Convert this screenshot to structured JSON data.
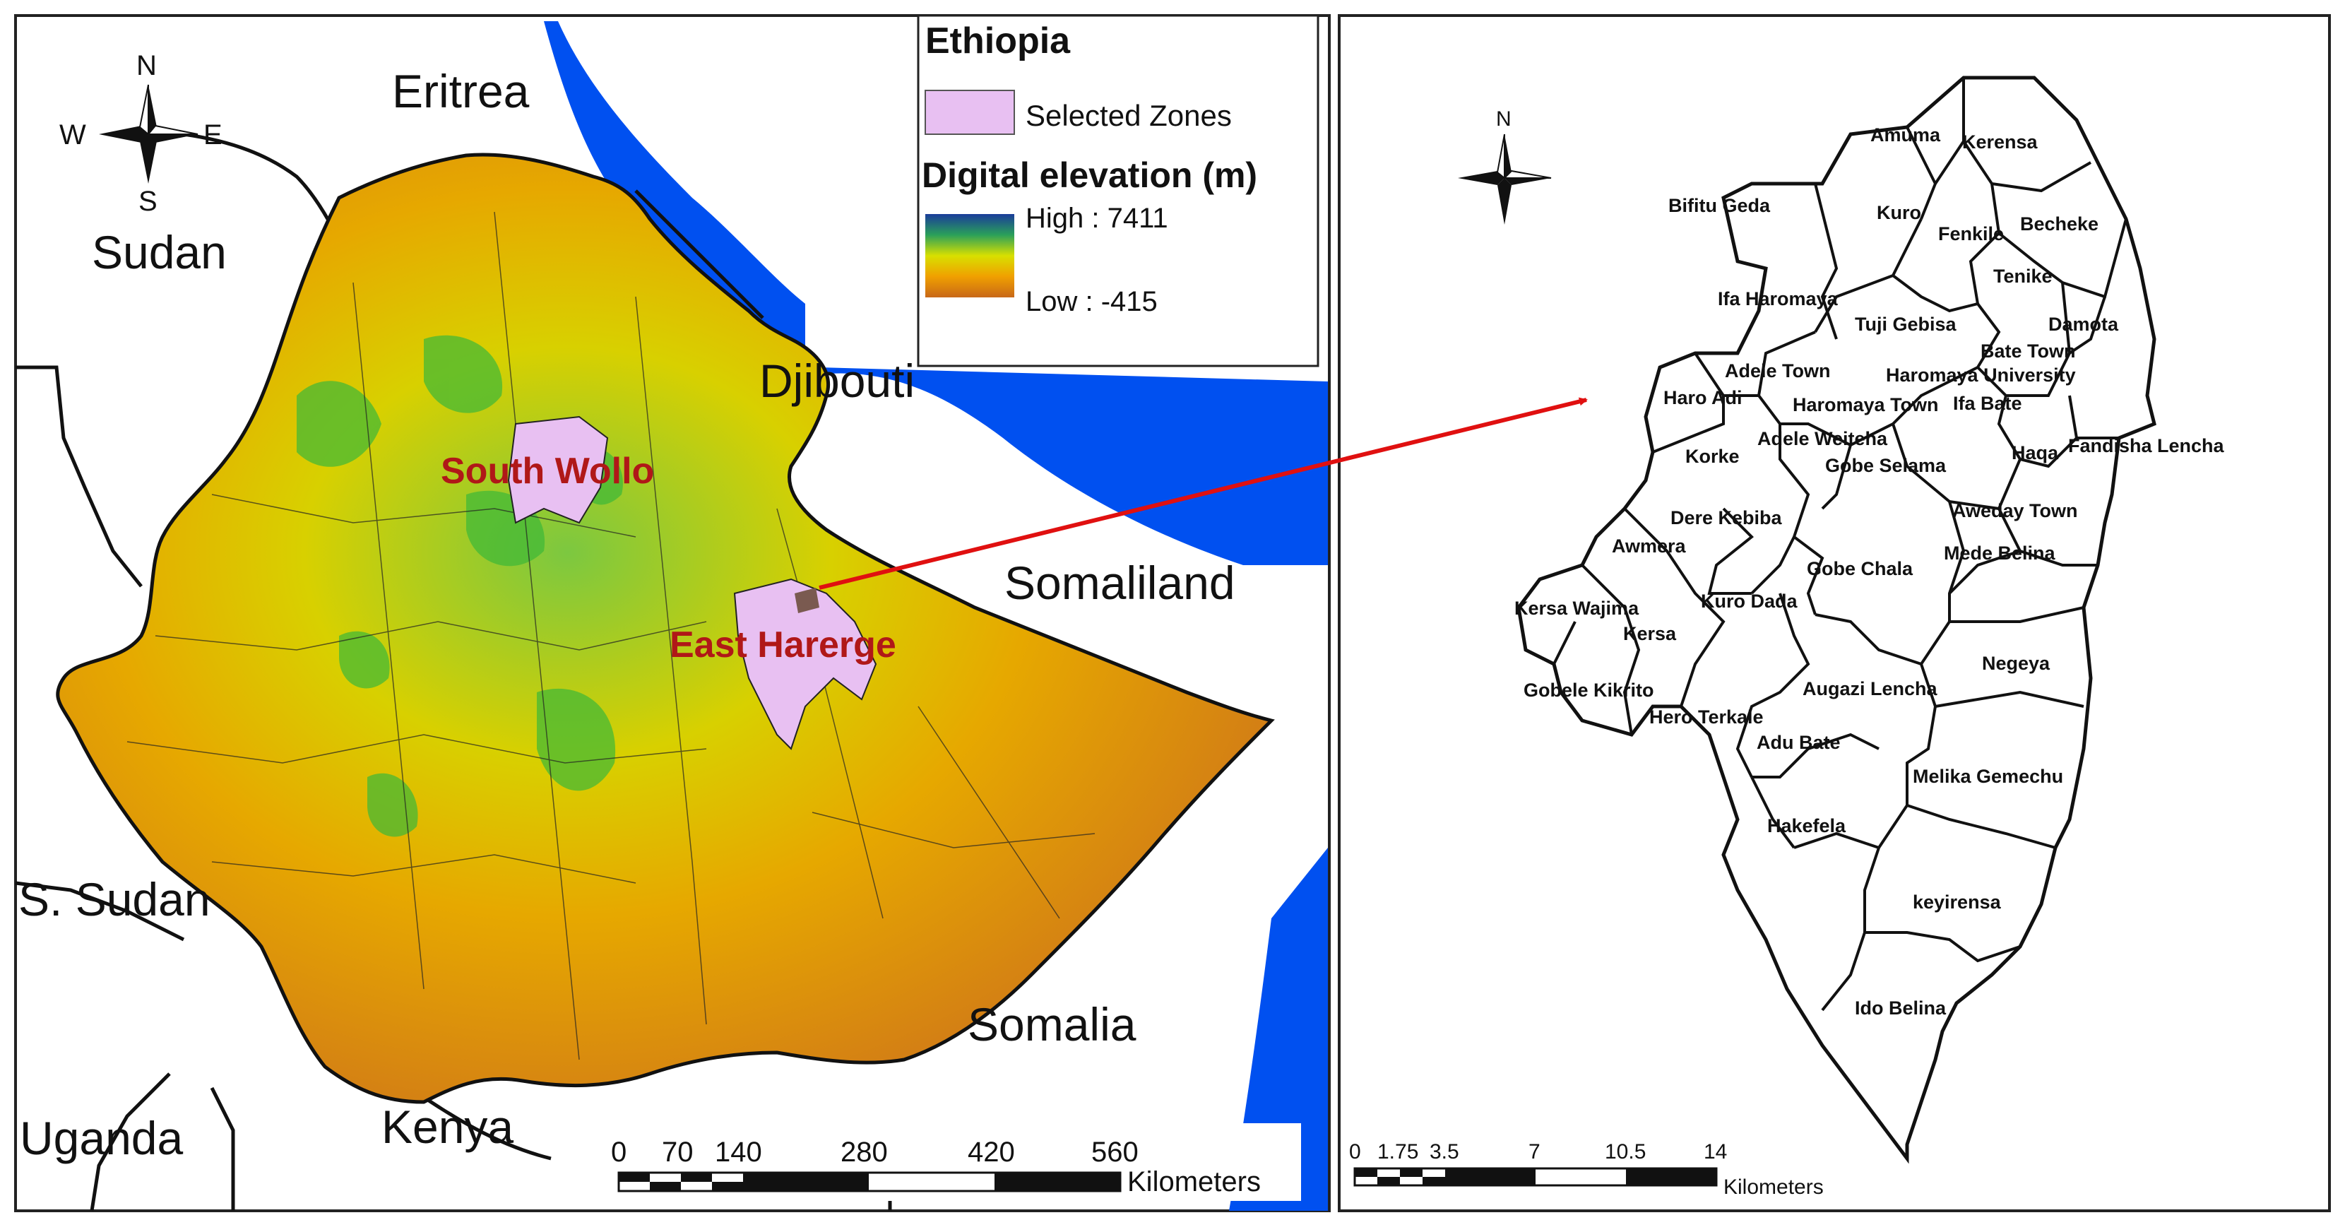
{
  "left_map": {
    "countries": [
      "Eritrea",
      "Sudan",
      "Djibouti",
      "Somaliland",
      "S. Sudan",
      "Somalia",
      "Uganda",
      "Kenya"
    ],
    "zones": [
      "South Wollo",
      "East Harerge"
    ],
    "compass": {
      "n": "N",
      "s": "S",
      "e": "E",
      "w": "W"
    },
    "legend": {
      "title": "Ethiopia",
      "selected": "Selected Zones",
      "elev_title": "Digital elevation (m)",
      "high": "High : 7411",
      "low": "Low : -415"
    },
    "scale": {
      "ticks": [
        "0",
        "70",
        "140",
        "280",
        "420",
        "560"
      ],
      "unit": "Kilometers"
    },
    "colors": {
      "sea": "#0050f0",
      "selected": "#e8c0f2",
      "zone_label": "#b01818",
      "arrow": "#e01010"
    }
  },
  "right_map": {
    "compass": {
      "n": "N"
    },
    "districts": [
      "Amuma",
      "Kerensa",
      "Bifitu Geda",
      "Kuro",
      "Fenkile",
      "Becheke",
      "Tenike",
      "Ifa Haromaya",
      "Tuji Gebisa",
      "Damota",
      "Bate Town",
      "Haromaya University",
      "Adele Town",
      "Haro Adi",
      "Haromaya Town",
      "Ifa Bate",
      "Adele Weiteha",
      "Korke",
      "Haqa",
      "Fandisha Lencha",
      "Gobe Selama",
      "Dere Kebiba",
      "Aweday Town",
      "Awmera",
      "Mede Belina",
      "Gobe Chala",
      "Kersa Wajima",
      "Kuro Dada",
      "Kersa",
      "Negeya",
      "Gobele Kikrito",
      "Augazi Lencha",
      "Hero Terkale",
      "Adu Bate",
      "Melika Gemechu",
      "Hakefela",
      "keyirensa",
      "Ido Belina"
    ],
    "scale": {
      "ticks": [
        "0",
        "1.75",
        "3.5",
        "7",
        "10.5",
        "14"
      ],
      "unit": "Kilometers"
    }
  }
}
